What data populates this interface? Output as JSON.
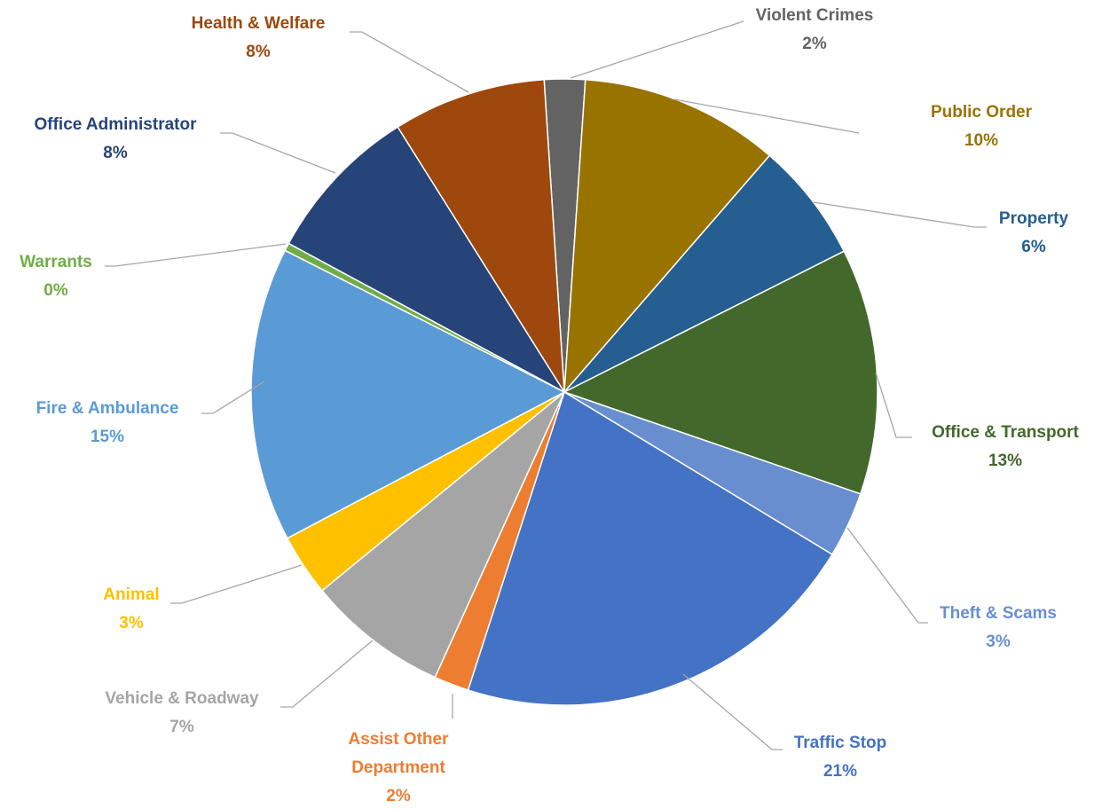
{
  "chart_data": {
    "type": "pie",
    "categories": [
      "Violent Crimes",
      "Public Order",
      "Property",
      "Office & Transport",
      "Theft & Scams",
      "Traffic Stop",
      "Assist Other Department",
      "Vehicle & Roadway",
      "Animal",
      "Fire & Ambulance",
      "Warrants",
      "Office Administrator",
      "Health & Welfare"
    ],
    "values": [
      2.1,
      10.3,
      6.2,
      12.7,
      3.4,
      21.3,
      1.8,
      7.3,
      3.2,
      15.2,
      0.4,
      8.2,
      7.9
    ],
    "value_labels": [
      "2%",
      "10%",
      "6%",
      "13%",
      "3%",
      "21%",
      "2%",
      "7%",
      "3%",
      "15%",
      "0%",
      "8%",
      "8%"
    ],
    "colors": [
      "#636363",
      "#997300",
      "#255e91",
      "#43682b",
      "#698ed0",
      "#4472c4",
      "#ed7d31",
      "#a5a5a5",
      "#ffc000",
      "#5b9bd5",
      "#70ad47",
      "#264478",
      "#9e480e"
    ]
  }
}
